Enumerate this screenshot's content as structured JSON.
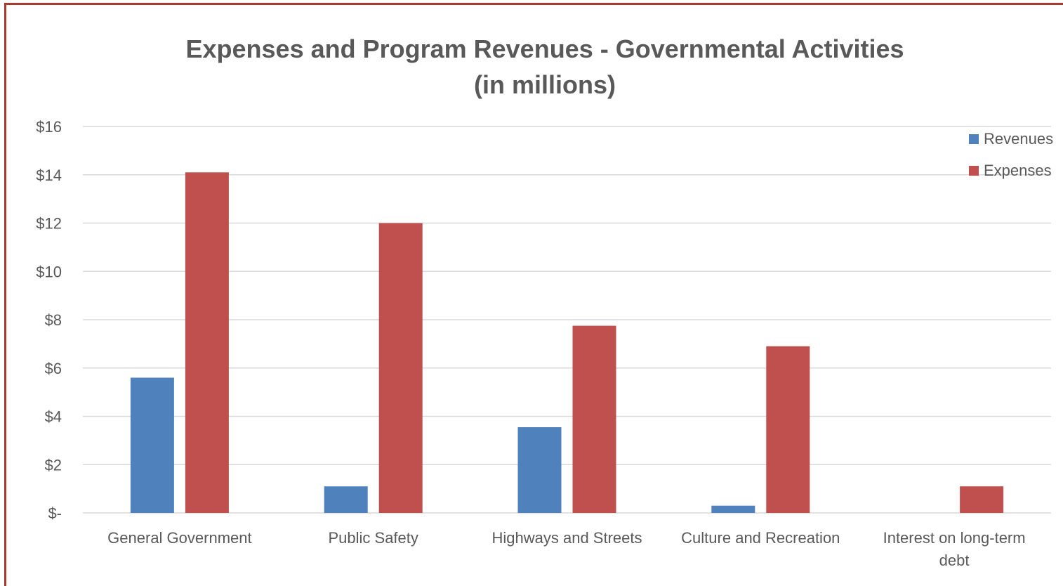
{
  "chart_data": {
    "type": "bar",
    "title_lines": [
      "Expenses and Program Revenues - Governmental Activities",
      "(in millions)"
    ],
    "categories": [
      [
        "General Government"
      ],
      [
        "Public Safety"
      ],
      [
        "Highways and Streets"
      ],
      [
        "Culture and Recreation"
      ],
      [
        "Interest on long-term",
        "debt"
      ]
    ],
    "series": [
      {
        "name": "Revenues",
        "color": "#4f81bd",
        "values": [
          5.6,
          1.1,
          3.55,
          0.3,
          0
        ]
      },
      {
        "name": "Expenses",
        "color": "#c0504d",
        "values": [
          14.1,
          12.0,
          7.75,
          6.9,
          1.1
        ]
      }
    ],
    "ylim": [
      0,
      16
    ],
    "yticks": [
      {
        "value": 0,
        "label": "$-"
      },
      {
        "value": 2,
        "label": "$2"
      },
      {
        "value": 4,
        "label": "$4"
      },
      {
        "value": 6,
        "label": "$6"
      },
      {
        "value": 8,
        "label": "$8"
      },
      {
        "value": 10,
        "label": "$10"
      },
      {
        "value": 12,
        "label": "$12"
      },
      {
        "value": 14,
        "label": "$14"
      },
      {
        "value": 16,
        "label": "$16"
      }
    ],
    "grid": true,
    "legend_position": "top-right"
  }
}
